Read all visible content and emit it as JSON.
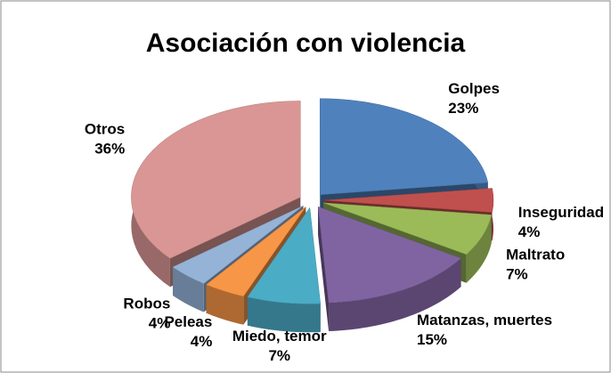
{
  "chart_data": {
    "type": "pie3d",
    "title": "Asociación con violencia",
    "categories": [
      "Golpes",
      "Inseguridad",
      "Maltrato",
      "Matanzas, muertes",
      "Miedo, temor",
      "Peleas",
      "Robos",
      "Otros"
    ],
    "values": [
      23,
      4,
      7,
      15,
      7,
      4,
      4,
      36
    ],
    "value_labels": [
      "23%",
      "4%",
      "7%",
      "15%",
      "7%",
      "4%",
      "4%",
      "36%"
    ],
    "colors": [
      "#4f81bd",
      "#c0504d",
      "#9bbb59",
      "#8064a2",
      "#4bacc6",
      "#f79646",
      "#95b3d7",
      "#d99694"
    ]
  }
}
